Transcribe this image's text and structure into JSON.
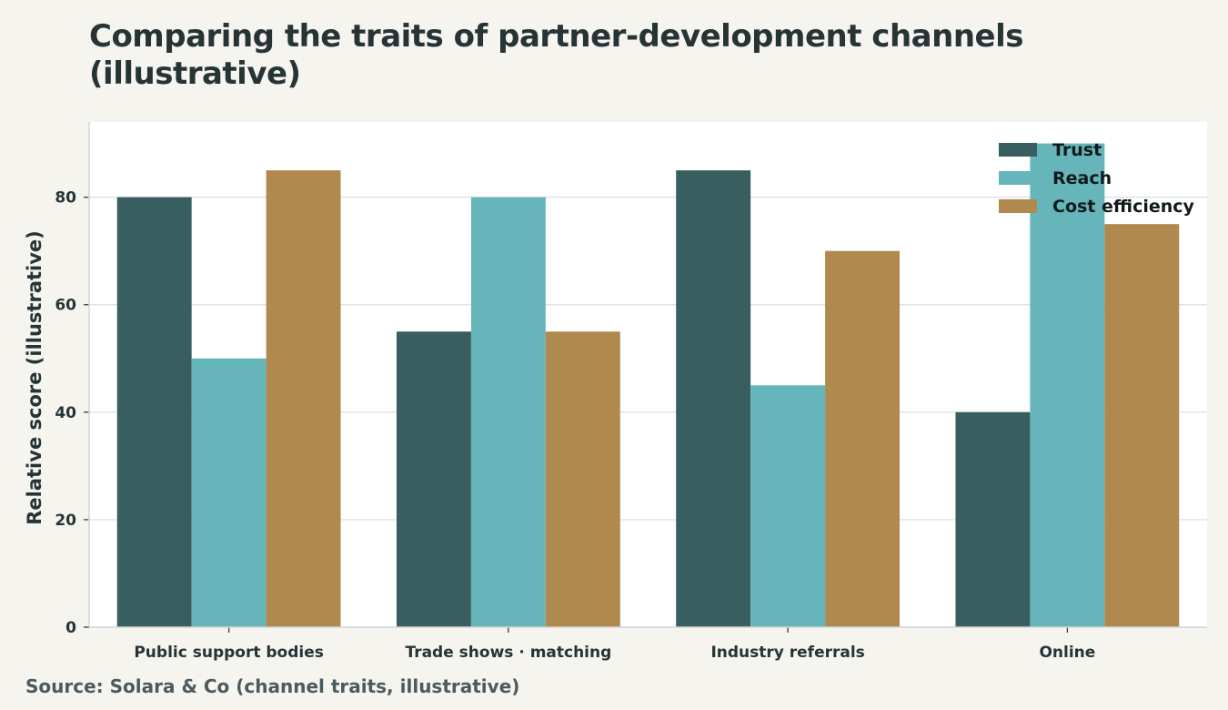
{
  "chart_data": {
    "type": "bar",
    "title": "Comparing the traits of partner-development channels (illustrative)",
    "ylabel": "Relative score (illustrative)",
    "xlabel": "",
    "categories": [
      "Public support bodies",
      "Trade shows · matching",
      "Industry referrals",
      "Online"
    ],
    "series": [
      {
        "name": "Trust",
        "color": "#385e5f",
        "values": [
          80,
          55,
          85,
          40
        ]
      },
      {
        "name": "Reach",
        "color": "#66b5bb",
        "values": [
          50,
          80,
          45,
          90
        ]
      },
      {
        "name": "Cost efficiency",
        "color": "#b0894f",
        "values": [
          85,
          55,
          70,
          75
        ]
      }
    ],
    "ylim": [
      0,
      94
    ],
    "yticks": [
      0,
      20,
      40,
      60,
      80
    ],
    "grid": true,
    "legend_position": "top-right",
    "source": "Source: Solara & Co (channel traits, illustrative)"
  }
}
